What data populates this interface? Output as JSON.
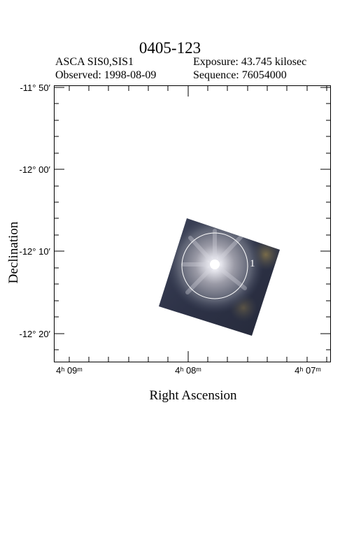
{
  "title": "0405-123",
  "header": {
    "instrument": "ASCA SIS0,SIS1",
    "exposure": "Exposure: 43.745 kilosec",
    "observed": "Observed: 1998-08-09",
    "sequence": "Sequence: 76054000"
  },
  "axes": {
    "ylabel": "Declination",
    "xlabel": "Right Ascension",
    "yticks": [
      "-11° 50′",
      "-12° 00′",
      "-12° 10′",
      "-12° 20′"
    ],
    "xticks": [
      "4ʰ 09ᵐ",
      "4ʰ 08ᵐ",
      "4ʰ 07ᵐ"
    ]
  },
  "source": {
    "label": "1"
  },
  "colors": {
    "circle": "#ffffff",
    "frame": "#000000"
  }
}
